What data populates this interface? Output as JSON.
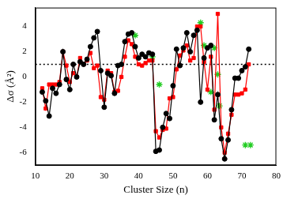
{
  "chart_data": {
    "type": "line",
    "x_label": "Cluster Size (n)",
    "y_label": "Δσ (Å²)",
    "xlim": [
      10,
      80
    ],
    "xticks": [
      10,
      20,
      30,
      40,
      50,
      60,
      70,
      80
    ],
    "ylim": [
      -7,
      5.5
    ],
    "yticks": [
      -6,
      -4,
      -2,
      0,
      2,
      4
    ],
    "grid": false,
    "series": [
      {
        "color": "#000000",
        "marker": "circle",
        "line_style": "solid",
        "x": [
          12,
          13,
          14,
          15,
          16,
          17,
          18,
          19,
          20,
          21,
          22,
          23,
          24,
          25,
          26,
          27,
          28,
          29,
          30,
          31,
          32,
          33,
          34,
          35,
          36,
          37,
          38,
          39,
          40,
          41,
          42,
          43,
          44,
          45,
          46,
          47,
          48,
          49,
          50,
          51,
          52,
          53,
          54,
          55,
          56,
          57,
          58,
          59,
          60,
          61,
          62,
          63,
          64,
          65,
          66,
          67,
          68,
          69,
          70,
          71,
          72
        ],
        "values": [
          -1.2,
          -1.9,
          -3.1,
          -0.9,
          -1.3,
          -0.6,
          2.0,
          -0.2,
          -1.0,
          1.0,
          0.0,
          1.2,
          1.0,
          1.4,
          2.4,
          3.1,
          3.6,
          0.5,
          -2.4,
          0.3,
          0.1,
          -1.3,
          0.9,
          1.0,
          2.8,
          3.4,
          3.5,
          2.4,
          1.5,
          1.8,
          1.6,
          1.9,
          1.8,
          -5.9,
          -5.8,
          -4.0,
          -2.9,
          -3.3,
          -0.7,
          2.2,
          0.9,
          2.3,
          3.5,
          2.0,
          3.3,
          3.7,
          -2.0,
          1.5,
          2.3,
          2.5,
          -3.4,
          -1.4,
          -4.9,
          -6.5,
          -5.0,
          -2.6,
          -0.1,
          -0.1,
          0.5,
          0.8,
          2.2
        ]
      },
      {
        "color": "#ff0000",
        "marker": "square",
        "line_style": "solid",
        "x": [
          12,
          13,
          14,
          15,
          16,
          17,
          18,
          19,
          20,
          21,
          22,
          23,
          24,
          25,
          26,
          27,
          28,
          29,
          30,
          31,
          32,
          33,
          34,
          35,
          36,
          37,
          38,
          39,
          40,
          41,
          42,
          43,
          44,
          45,
          46,
          47,
          48,
          49,
          50,
          51,
          52,
          53,
          54,
          55,
          56,
          57,
          58,
          59,
          60,
          61,
          62,
          63,
          64,
          65,
          66,
          67,
          68,
          69,
          70,
          71,
          72
        ],
        "values": [
          -0.9,
          -2.5,
          -0.6,
          -0.6,
          -0.6,
          -0.4,
          2.0,
          0.9,
          -0.4,
          0.3,
          0.0,
          1.5,
          1.0,
          1.3,
          1.9,
          0.7,
          0.9,
          -1.6,
          -1.8,
          0.5,
          0.3,
          -1.2,
          -1.1,
          0.0,
          1.6,
          2.9,
          2.6,
          1.6,
          1.0,
          0.9,
          1.1,
          1.3,
          1.3,
          -4.3,
          -4.8,
          -4.2,
          -4.1,
          -1.7,
          -1.6,
          0.6,
          1.7,
          2.1,
          2.5,
          1.3,
          1.5,
          4.0,
          4.0,
          1.2,
          -1.0,
          1.6,
          -2.6,
          5.0,
          -4.0,
          -6.0,
          -4.5,
          -3.0,
          -1.4,
          -1.4,
          -1.3,
          -1.0,
          1.0
        ]
      },
      {
        "color": "#22cc22",
        "marker": "star",
        "line_style": "none",
        "x": [
          39,
          44,
          46,
          58,
          59,
          61,
          62,
          63,
          63.5,
          71,
          72.5
        ],
        "values": [
          3.3,
          1.6,
          -0.6,
          4.3,
          2.5,
          -1.2,
          2.3,
          0.2,
          -2.3,
          -5.4,
          -5.4
        ]
      },
      {
        "color": "#000000",
        "marker": "none",
        "line_style": "dotted",
        "x": [
          10,
          80
        ],
        "values": [
          1,
          1
        ]
      }
    ]
  }
}
